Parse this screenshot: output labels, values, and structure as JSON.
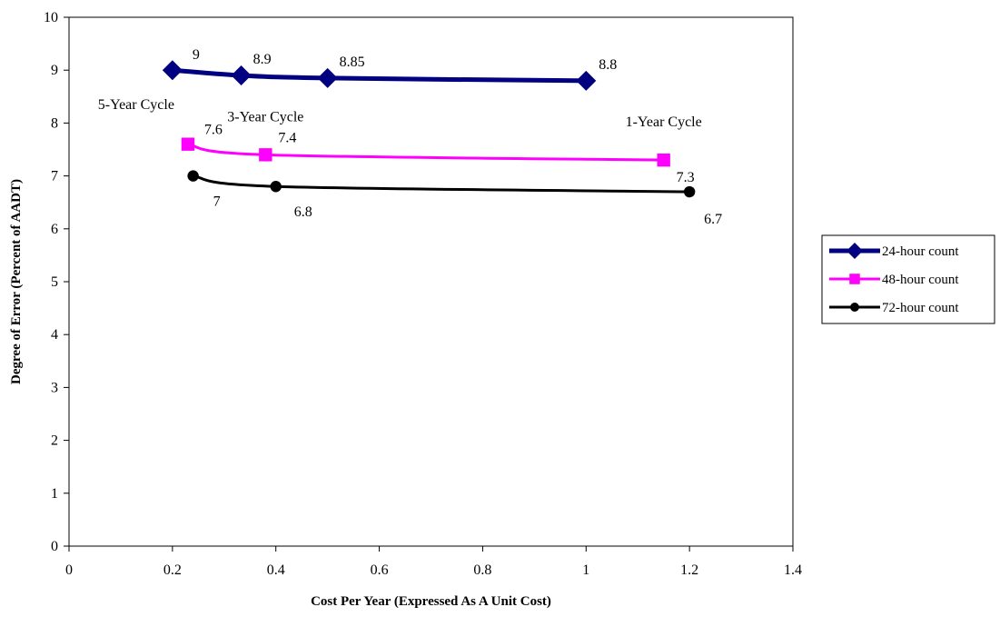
{
  "chart_data": {
    "type": "line",
    "xlabel": "Cost Per Year (Expressed As A Unit Cost)",
    "ylabel": "Degree of Error (Percent of AADT)",
    "xlim": [
      0,
      1.4
    ],
    "ylim": [
      0,
      10
    ],
    "x_ticks": [
      "0",
      "0.2",
      "0.4",
      "0.6",
      "0.8",
      "1",
      "1.2",
      "1.4"
    ],
    "y_ticks": [
      "0",
      "1",
      "2",
      "3",
      "4",
      "5",
      "6",
      "7",
      "8",
      "9",
      "10"
    ],
    "grid": false,
    "legend_position": "right",
    "series": [
      {
        "name": "24-hour count",
        "color": "#000080",
        "marker": "diamond",
        "points": [
          {
            "x": 0.2,
            "y": 9,
            "label": "9"
          },
          {
            "x": 0.333,
            "y": 8.9,
            "label": "8.9"
          },
          {
            "x": 0.5,
            "y": 8.85,
            "label": "8.85"
          },
          {
            "x": 1.0,
            "y": 8.8,
            "label": "8.8"
          }
        ]
      },
      {
        "name": "48-hour count",
        "color": "#FF00FF",
        "marker": "square",
        "points": [
          {
            "x": 0.23,
            "y": 7.6,
            "label": "7.6"
          },
          {
            "x": 0.38,
            "y": 7.4,
            "label": "7.4"
          },
          {
            "x": 1.15,
            "y": 7.3,
            "label": "7.3"
          }
        ]
      },
      {
        "name": "72-hour count",
        "color": "#000000",
        "marker": "circle",
        "points": [
          {
            "x": 0.24,
            "y": 7,
            "label": "7"
          },
          {
            "x": 0.4,
            "y": 6.8,
            "label": "6.8"
          },
          {
            "x": 1.2,
            "y": 6.7,
            "label": "6.7"
          }
        ]
      }
    ],
    "annotations": [
      {
        "text": "5-Year Cycle",
        "x": 0.2,
        "y": 9
      },
      {
        "text": "3-Year Cycle",
        "x": 0.38,
        "y": 7.4
      },
      {
        "text": "1-Year Cycle",
        "x": 1.15,
        "y": 7.3
      }
    ]
  }
}
